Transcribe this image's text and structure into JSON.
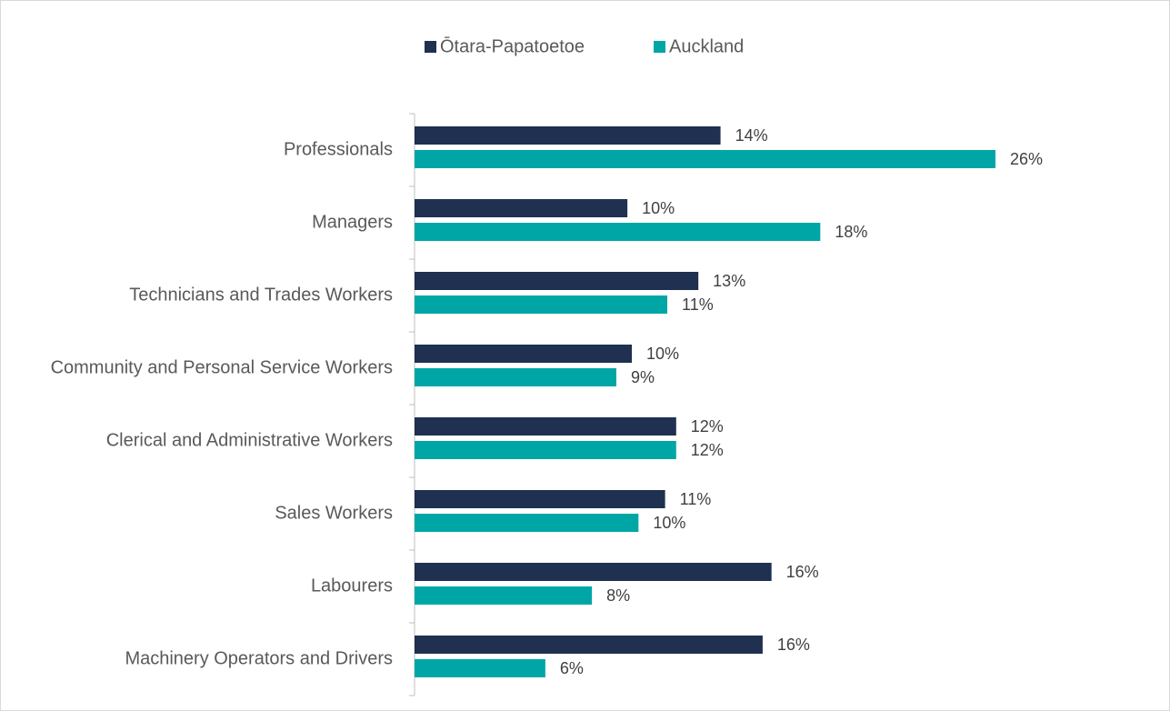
{
  "chart_data": {
    "type": "hbar",
    "categories": [
      "Professionals",
      "Managers",
      "Technicians and Trades Workers",
      "Community and Personal Service Workers",
      "Clerical and Administrative Workers",
      "Sales Workers",
      "Labourers",
      "Machinery Operators and Drivers"
    ],
    "series": [
      {
        "name": "Ōtara-Papatoetoe",
        "color": "#1f3050",
        "values": [
          13.8,
          9.6,
          12.8,
          9.8,
          11.8,
          11.3,
          16.1,
          15.7
        ],
        "value_labels": [
          "14%",
          "10%",
          "13%",
          "10%",
          "12%",
          "11%",
          "16%",
          "16%"
        ]
      },
      {
        "name": "Auckland",
        "color": "#00a6a6",
        "values": [
          26.2,
          18.3,
          11.4,
          9.1,
          11.8,
          10.1,
          8.0,
          5.9
        ],
        "value_labels": [
          "26%",
          "18%",
          "11%",
          "9%",
          "12%",
          "10%",
          "8%",
          "6%"
        ]
      }
    ],
    "legend": "top"
  }
}
